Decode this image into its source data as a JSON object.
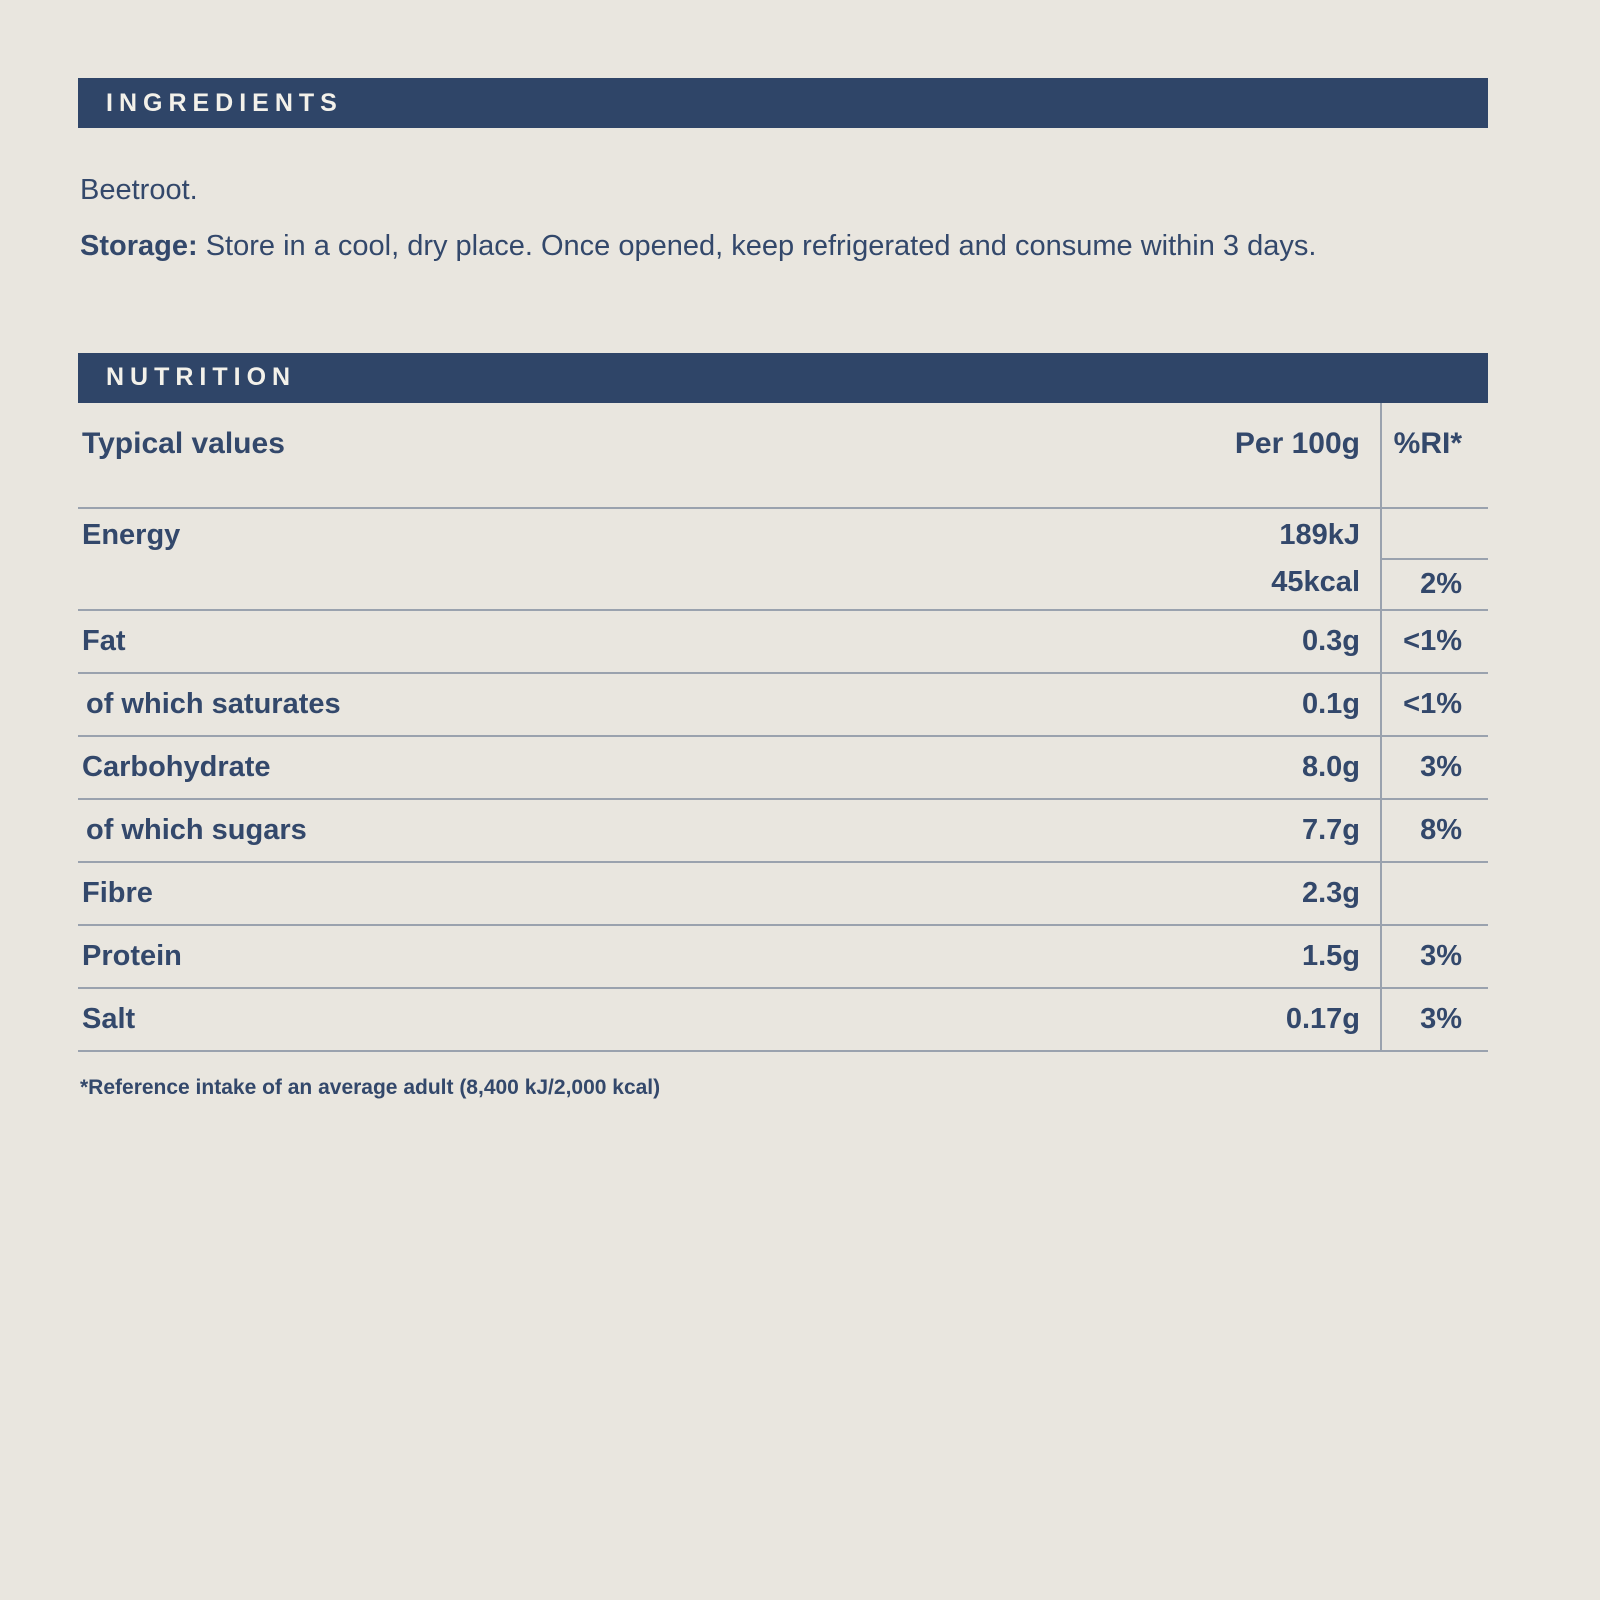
{
  "page": {
    "background_color": "#e9e6df",
    "accent_color": "#2f4568",
    "text_color": "#33486b",
    "line_color": "#9aa2ae"
  },
  "ingredients": {
    "header": "INGREDIENTS",
    "text": "Beetroot.",
    "storage_label": "Storage:",
    "storage_text": " Store in a cool, dry place. Once opened, keep refrigerated and consume within 3 days."
  },
  "nutrition": {
    "header": "NUTRITION",
    "columns": {
      "label": "Typical values",
      "per": "Per 100g",
      "ri": "%RI*"
    },
    "energy": {
      "label": "Energy",
      "value_kj": "189kJ",
      "value_kcal": "45kcal",
      "ri": "2%"
    },
    "rows": [
      {
        "label": "Fat",
        "value": "0.3g",
        "ri": "<1%"
      },
      {
        "label": "of which saturates",
        "value": "0.1g",
        "ri": "<1%"
      },
      {
        "label": "Carbohydrate",
        "value": "8.0g",
        "ri": "3%"
      },
      {
        "label": "of which sugars",
        "value": "7.7g",
        "ri": "8%"
      },
      {
        "label": "Fibre",
        "value": "2.3g",
        "ri": ""
      },
      {
        "label": "Protein",
        "value": "1.5g",
        "ri": "3%"
      },
      {
        "label": "Salt",
        "value": "0.17g",
        "ri": "3%"
      }
    ],
    "footnote": "*Reference intake of an average adult (8,400 kJ/2,000 kcal)"
  }
}
